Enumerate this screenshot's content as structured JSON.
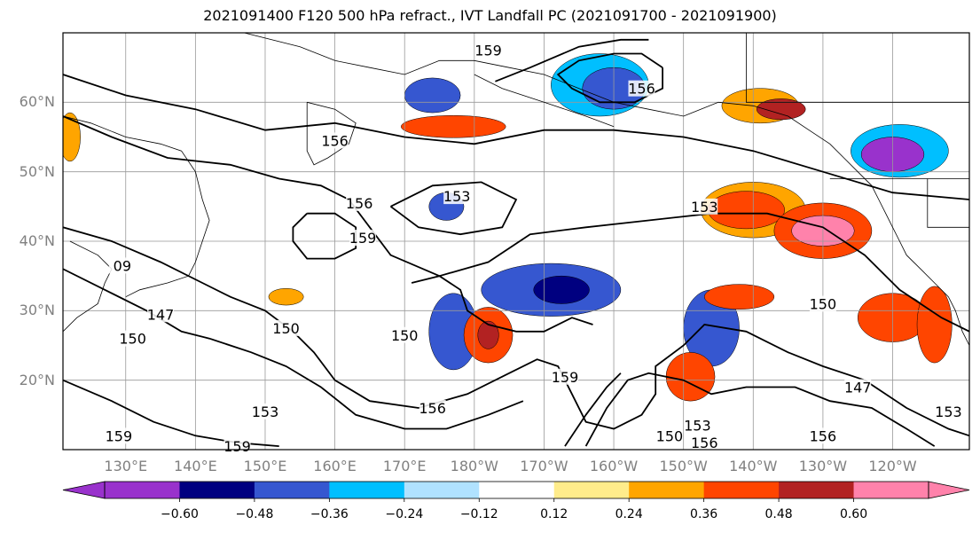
{
  "title": "2021091400 F120 500 hPa refract., IVT Landfall PC (2021091700 - 2021091900)",
  "axes": {
    "lat_labels": [
      "60°N",
      "50°N",
      "40°N",
      "30°N",
      "20°N"
    ],
    "lon_labels": [
      "130°E",
      "140°E",
      "150°E",
      "160°E",
      "170°E",
      "180°W",
      "170°W",
      "160°W",
      "150°W",
      "140°W",
      "130°W",
      "120°W"
    ],
    "lat_values": [
      60,
      50,
      40,
      30,
      20
    ],
    "lon_values": [
      130,
      140,
      150,
      160,
      170,
      180,
      190,
      200,
      210,
      220,
      230,
      240
    ],
    "lat_range": [
      10,
      70
    ],
    "lon_range": [
      121,
      251
    ],
    "grid": true
  },
  "colorbar": {
    "tick_labels": [
      "−0.60",
      "−0.48",
      "−0.36",
      "−0.24",
      "−0.12",
      "0.12",
      "0.24",
      "0.36",
      "0.48",
      "0.60"
    ],
    "colors": [
      "#9932cc",
      "#000080",
      "#3657d0",
      "#00bfff",
      "#b0e2ff",
      "#ffffff",
      "#ffec8b",
      "#ffa500",
      "#ff4500",
      "#b22222",
      "#ff82ab"
    ],
    "extend": "both"
  },
  "contour_labels": [
    {
      "text": "159",
      "lon": 182,
      "lat": 67.5
    },
    {
      "text": "156",
      "lon": 204,
      "lat": 62
    },
    {
      "text": "156",
      "lon": 160,
      "lat": 54.5
    },
    {
      "text": "156",
      "lon": 163.5,
      "lat": 45.5
    },
    {
      "text": "153",
      "lon": 177.5,
      "lat": 46.5
    },
    {
      "text": "153",
      "lon": 213,
      "lat": 45
    },
    {
      "text": "159",
      "lon": 164,
      "lat": 40.5
    },
    {
      "text": "147",
      "lon": 135,
      "lat": 29.5
    },
    {
      "text": "150",
      "lon": 131,
      "lat": 26
    },
    {
      "text": "150",
      "lon": 153,
      "lat": 27.5
    },
    {
      "text": "150",
      "lon": 170,
      "lat": 26.5
    },
    {
      "text": "150",
      "lon": 230,
      "lat": 31
    },
    {
      "text": "159",
      "lon": 193,
      "lat": 20.5
    },
    {
      "text": "156",
      "lon": 174,
      "lat": 16
    },
    {
      "text": "153",
      "lon": 150,
      "lat": 15.5
    },
    {
      "text": "159",
      "lon": 129,
      "lat": 12
    },
    {
      "text": "159",
      "lon": 146,
      "lat": 10.5
    },
    {
      "text": "150",
      "lon": 208,
      "lat": 12
    },
    {
      "text": "153",
      "lon": 212,
      "lat": 13.5
    },
    {
      "text": "156",
      "lon": 213,
      "lat": 11
    },
    {
      "text": "156",
      "lon": 230,
      "lat": 12
    },
    {
      "text": "147",
      "lon": 235,
      "lat": 19
    },
    {
      "text": "153",
      "lon": 248,
      "lat": 15.5
    },
    {
      "text": "09",
      "lon": 129.5,
      "lat": 36.5
    }
  ],
  "shaded_blobs": [
    {
      "lon": 221,
      "lat": 59.5,
      "rx": 5.5,
      "ry": 2.5,
      "color": "#ffa500"
    },
    {
      "lon": 224,
      "lat": 59,
      "rx": 3.5,
      "ry": 1.5,
      "color": "#b22222"
    },
    {
      "lon": 241,
      "lat": 53,
      "rx": 7,
      "ry": 3.8,
      "color": "#00bfff"
    },
    {
      "lon": 240,
      "lat": 52.5,
      "rx": 4.5,
      "ry": 2.5,
      "color": "#9932cc"
    },
    {
      "lon": 220,
      "lat": 44.5,
      "rx": 7.5,
      "ry": 4,
      "color": "#ffa500"
    },
    {
      "lon": 219,
      "lat": 44.5,
      "rx": 5.5,
      "ry": 2.7,
      "color": "#ff4500"
    },
    {
      "lon": 230,
      "lat": 41.5,
      "rx": 7,
      "ry": 4,
      "color": "#ff4500"
    },
    {
      "lon": 230,
      "lat": 41.5,
      "rx": 4.5,
      "ry": 2.2,
      "color": "#ff82ab"
    },
    {
      "lon": 198,
      "lat": 62.5,
      "rx": 7,
      "ry": 4.5,
      "color": "#00bfff"
    },
    {
      "lon": 200,
      "lat": 62,
      "rx": 4.5,
      "ry": 3,
      "color": "#3657d0"
    },
    {
      "lon": 174,
      "lat": 61,
      "rx": 4,
      "ry": 2.5,
      "color": "#3657d0"
    },
    {
      "lon": 177,
      "lat": 56.5,
      "rx": 7.5,
      "ry": 1.6,
      "color": "#ff4500"
    },
    {
      "lon": 176,
      "lat": 45,
      "rx": 2.5,
      "ry": 2,
      "color": "#3657d0"
    },
    {
      "lon": 191,
      "lat": 33,
      "rx": 10,
      "ry": 3.8,
      "color": "#3657d0"
    },
    {
      "lon": 192.5,
      "lat": 33,
      "rx": 4,
      "ry": 2,
      "color": "#000080"
    },
    {
      "lon": 177,
      "lat": 27,
      "rx": 3.5,
      "ry": 5.5,
      "color": "#3657d0"
    },
    {
      "lon": 182,
      "lat": 26.5,
      "rx": 3.5,
      "ry": 4,
      "color": "#ff4500"
    },
    {
      "lon": 182,
      "lat": 26.5,
      "rx": 1.5,
      "ry": 2,
      "color": "#b22222"
    },
    {
      "lon": 214,
      "lat": 27.5,
      "rx": 4,
      "ry": 5.5,
      "color": "#3657d0"
    },
    {
      "lon": 211,
      "lat": 20.5,
      "rx": 3.5,
      "ry": 3.5,
      "color": "#ff4500"
    },
    {
      "lon": 218,
      "lat": 32,
      "rx": 5,
      "ry": 1.8,
      "color": "#ff4500"
    },
    {
      "lon": 240,
      "lat": 29,
      "rx": 5,
      "ry": 3.5,
      "color": "#ff4500"
    },
    {
      "lon": 246,
      "lat": 28,
      "rx": 2.5,
      "ry": 5.5,
      "color": "#ff4500"
    },
    {
      "lon": 122,
      "lat": 55,
      "rx": 1.5,
      "ry": 3.5,
      "color": "#ffa500"
    },
    {
      "lon": 153,
      "lat": 32,
      "rx": 2.5,
      "ry": 1.2,
      "color": "#ffa500"
    }
  ],
  "contour_paths": [
    {
      "points": [
        [
          121,
          64
        ],
        [
          130,
          61
        ],
        [
          140,
          59
        ],
        [
          150,
          56
        ],
        [
          160,
          57
        ],
        [
          170,
          55
        ],
        [
          180,
          54
        ],
        [
          190,
          56
        ],
        [
          200,
          56
        ],
        [
          210,
          55
        ],
        [
          220,
          53
        ],
        [
          230,
          50
        ],
        [
          240,
          47
        ],
        [
          251,
          46
        ]
      ]
    },
    {
      "points": [
        [
          121,
          58
        ],
        [
          128,
          55
        ],
        [
          136,
          52
        ],
        [
          145,
          51
        ],
        [
          152,
          49
        ],
        [
          158,
          48
        ],
        [
          162,
          46
        ],
        [
          165,
          42
        ],
        [
          168,
          38
        ],
        [
          175,
          35
        ],
        [
          182,
          37
        ],
        [
          188,
          41
        ],
        [
          196,
          42
        ],
        [
          205,
          43
        ],
        [
          214,
          44
        ],
        [
          222,
          44
        ],
        [
          230,
          42
        ],
        [
          236,
          38
        ],
        [
          241,
          33
        ],
        [
          247,
          29
        ],
        [
          251,
          27
        ]
      ]
    },
    {
      "points": [
        [
          121,
          42
        ],
        [
          128,
          40
        ],
        [
          135,
          37
        ],
        [
          141,
          34
        ],
        [
          145,
          32
        ],
        [
          150,
          30
        ],
        [
          154,
          27
        ],
        [
          157,
          24
        ],
        [
          160,
          20
        ],
        [
          165,
          17
        ],
        [
          172,
          16
        ],
        [
          179,
          18
        ],
        [
          185,
          21
        ],
        [
          189,
          23
        ],
        [
          192,
          22
        ],
        [
          194,
          18
        ],
        [
          196,
          14
        ],
        [
          200,
          13
        ],
        [
          204,
          15
        ],
        [
          206,
          18
        ],
        [
          206,
          22
        ],
        [
          210,
          25
        ],
        [
          213,
          28
        ],
        [
          219,
          27
        ],
        [
          225,
          24
        ],
        [
          230,
          22
        ],
        [
          236,
          20
        ],
        [
          242,
          16
        ],
        [
          248,
          13
        ],
        [
          251,
          12
        ]
      ]
    },
    {
      "points": [
        [
          121,
          36
        ],
        [
          127,
          33
        ],
        [
          133,
          30
        ],
        [
          138,
          27
        ],
        [
          142,
          26
        ],
        [
          148,
          24
        ],
        [
          153,
          22
        ],
        [
          158,
          19
        ],
        [
          163,
          15
        ],
        [
          170,
          13
        ],
        [
          176,
          13
        ],
        [
          182,
          15
        ],
        [
          187,
          17
        ]
      ]
    },
    {
      "points": [
        [
          121,
          20
        ],
        [
          128,
          17
        ],
        [
          134,
          14
        ],
        [
          140,
          12
        ],
        [
          146,
          11
        ],
        [
          152,
          10.5
        ]
      ]
    },
    {
      "points": [
        [
          196,
          10.5
        ],
        [
          199,
          16
        ],
        [
          202,
          20
        ],
        [
          205,
          21
        ],
        [
          210,
          20
        ],
        [
          214,
          18
        ],
        [
          219,
          19
        ],
        [
          226,
          19
        ],
        [
          231,
          17
        ],
        [
          237,
          16
        ],
        [
          242,
          13
        ],
        [
          246,
          10.5
        ]
      ]
    },
    {
      "points": [
        [
          193,
          10.5
        ],
        [
          196,
          15
        ],
        [
          199,
          19
        ],
        [
          201,
          21
        ]
      ]
    },
    {
      "points": [
        [
          156,
          44
        ],
        [
          160,
          44
        ],
        [
          163,
          42
        ],
        [
          163,
          39
        ],
        [
          160,
          37.5
        ],
        [
          156,
          37.5
        ],
        [
          154,
          40
        ],
        [
          154,
          42
        ],
        [
          156,
          44
        ]
      ]
    },
    {
      "points": [
        [
          168,
          45
        ],
        [
          174,
          48
        ],
        [
          181,
          48.5
        ],
        [
          186,
          46
        ],
        [
          184,
          42
        ],
        [
          178,
          41
        ],
        [
          172,
          42
        ],
        [
          168,
          45
        ]
      ]
    },
    {
      "points": [
        [
          171,
          34
        ],
        [
          175,
          35
        ],
        [
          178,
          33
        ],
        [
          179,
          30
        ],
        [
          182,
          28
        ],
        [
          186,
          27
        ],
        [
          190,
          27
        ],
        [
          194,
          29
        ],
        [
          197,
          28
        ]
      ]
    },
    {
      "points": [
        [
          207,
          65
        ],
        [
          204,
          67
        ],
        [
          200,
          67
        ],
        [
          195,
          66
        ],
        [
          192,
          64
        ],
        [
          194,
          62
        ],
        [
          198,
          60
        ],
        [
          203,
          60
        ],
        [
          207,
          62
        ],
        [
          207,
          65
        ]
      ]
    },
    {
      "points": [
        [
          183,
          63
        ],
        [
          188,
          65
        ],
        [
          195,
          68
        ],
        [
          201,
          69
        ],
        [
          205,
          69
        ]
      ]
    }
  ],
  "coast_paths": [
    {
      "points": [
        [
          147,
          70
        ],
        [
          155,
          68
        ],
        [
          160,
          66
        ],
        [
          165,
          65
        ],
        [
          170,
          64
        ],
        [
          175,
          66
        ],
        [
          180,
          66
        ],
        [
          185,
          65
        ],
        [
          190,
          64
        ],
        [
          195,
          62
        ],
        [
          200,
          60
        ],
        [
          205,
          59
        ],
        [
          210,
          58
        ],
        [
          215,
          60
        ],
        [
          220,
          59.5
        ],
        [
          225,
          58
        ],
        [
          228,
          56
        ],
        [
          231,
          54
        ],
        [
          233,
          52
        ],
        [
          235,
          50
        ],
        [
          237,
          48
        ],
        [
          238,
          46
        ],
        [
          239,
          44
        ],
        [
          240,
          42
        ],
        [
          241,
          40
        ],
        [
          242,
          38
        ],
        [
          244,
          36
        ],
        [
          246,
          34
        ],
        [
          248,
          32
        ],
        [
          249,
          30
        ],
        [
          250,
          27
        ],
        [
          251,
          25
        ]
      ]
    },
    {
      "points": [
        [
          121,
          58
        ],
        [
          125,
          57
        ],
        [
          130,
          55
        ],
        [
          135,
          54
        ],
        [
          138,
          53
        ],
        [
          140,
          50
        ],
        [
          141,
          46
        ],
        [
          142,
          43
        ],
        [
          141,
          40
        ],
        [
          140,
          37
        ],
        [
          139,
          35
        ],
        [
          136,
          34
        ],
        [
          132,
          33
        ],
        [
          130,
          32
        ]
      ]
    },
    {
      "points": [
        [
          122,
          40
        ],
        [
          126,
          38
        ],
        [
          128,
          36
        ],
        [
          127,
          34
        ],
        [
          126,
          31
        ],
        [
          123,
          29
        ],
        [
          121,
          27
        ]
      ]
    },
    {
      "points": [
        [
          156,
          60
        ],
        [
          160,
          59
        ],
        [
          163,
          57
        ],
        [
          162,
          54
        ],
        [
          159,
          52
        ],
        [
          157,
          51
        ],
        [
          156,
          53
        ],
        [
          156,
          57
        ],
        [
          156,
          60
        ]
      ]
    },
    {
      "points": [
        [
          180,
          64
        ],
        [
          184,
          62
        ],
        [
          190,
          60
        ],
        [
          196,
          58
        ],
        [
          200,
          56.5
        ]
      ]
    }
  ],
  "border_paths": [
    {
      "points": [
        [
          219,
          70
        ],
        [
          219,
          60
        ],
        [
          251,
          60
        ]
      ]
    },
    {
      "points": [
        [
          231,
          49
        ],
        [
          251,
          49
        ]
      ]
    },
    {
      "points": [
        [
          245,
          49
        ],
        [
          245,
          42
        ],
        [
          251,
          42
        ]
      ]
    }
  ]
}
